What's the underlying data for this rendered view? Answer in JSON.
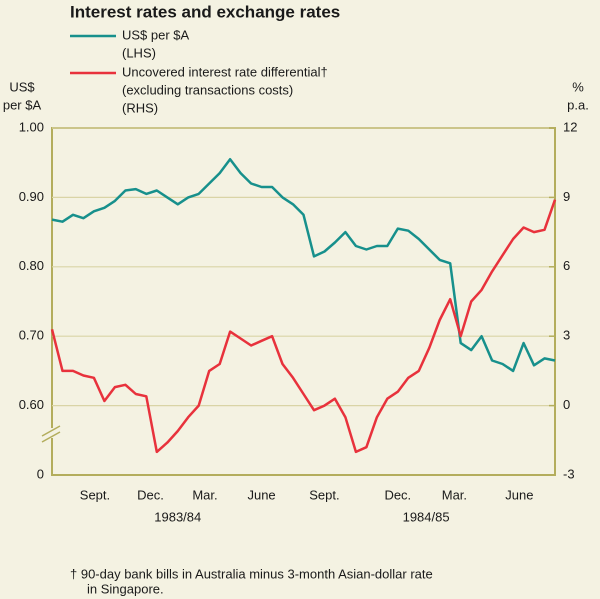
{
  "chart_data": {
    "type": "line",
    "title": "Interest rates and exchange rates",
    "y_label": [
      "US$",
      "per $A"
    ],
    "y2_label": [
      "%",
      "p.a."
    ],
    "y_break_label": "0",
    "x": [
      0,
      0.5,
      1,
      1.5,
      2,
      2.5,
      3,
      3.5,
      4,
      4.5,
      5,
      5.5,
      6,
      6.5,
      7,
      7.5,
      8,
      8.5,
      9,
      9.5,
      10,
      10.5,
      11,
      11.5,
      12,
      12.5,
      13,
      13.5,
      14,
      14.5,
      15,
      15.5,
      16,
      16.5,
      17,
      17.5,
      18,
      18.5,
      19,
      19.5,
      20,
      20.5,
      21,
      21.5,
      22,
      22.5,
      23,
      23.5,
      24
    ],
    "xlim": [
      0,
      24
    ],
    "xticks": [
      {
        "value": 2.05,
        "label": "Sept."
      },
      {
        "value": 4.7,
        "label": "Dec."
      },
      {
        "value": 7.3,
        "label": "Mar."
      },
      {
        "value": 10,
        "label": "June"
      },
      {
        "value": 13,
        "label": "Sept."
      },
      {
        "value": 16.5,
        "label": "Dec."
      },
      {
        "value": 19.2,
        "label": "Mar."
      },
      {
        "value": 22.3,
        "label": "June"
      }
    ],
    "x_groups": [
      "1983/84",
      "1984/85"
    ],
    "ylim": [
      0.5,
      1.0
    ],
    "yticks": [
      {
        "value": 0.6,
        "label": "0.60"
      },
      {
        "value": 0.7,
        "label": "0.70"
      },
      {
        "value": 0.8,
        "label": "0.80"
      },
      {
        "value": 0.9,
        "label": "0.90"
      },
      {
        "value": 1.0,
        "label": "1.00"
      }
    ],
    "y2lim": [
      -3,
      12
    ],
    "y2ticks": [
      -3,
      0,
      3,
      6,
      9,
      12
    ],
    "grid": true,
    "series": [
      {
        "name": "US$ per $A",
        "name_note": "(LHS)",
        "color": "#17908c",
        "values": [
          0.868,
          0.865,
          0.875,
          0.87,
          0.88,
          0.885,
          0.895,
          0.91,
          0.912,
          0.905,
          0.91,
          0.9,
          0.89,
          0.9,
          0.905,
          0.92,
          0.935,
          0.955,
          0.935,
          0.92,
          0.915,
          0.915,
          0.9,
          0.89,
          0.875,
          0.815,
          0.822,
          0.835,
          0.85,
          0.83,
          0.825,
          0.83,
          0.83,
          0.855,
          0.852,
          0.84,
          0.825,
          0.81,
          0.805,
          0.69,
          0.68,
          0.7,
          0.665,
          0.66,
          0.65,
          0.69,
          0.658,
          0.668,
          0.665
        ]
      },
      {
        "name": "Uncovered interest rate differential†",
        "name_note": [
          "(excluding transactions costs)",
          "(RHS)"
        ],
        "color": "#e8323c",
        "axis": "y2",
        "values": [
          3.3,
          1.5,
          1.5,
          1.3,
          1.2,
          0.2,
          0.8,
          0.9,
          0.5,
          0.4,
          -2.0,
          -1.6,
          -1.1,
          -0.5,
          0.0,
          1.5,
          1.8,
          3.2,
          2.9,
          2.6,
          2.8,
          3.0,
          1.8,
          1.2,
          0.5,
          -0.2,
          0.0,
          0.3,
          -0.5,
          -2.0,
          -1.8,
          -0.5,
          0.3,
          0.6,
          1.2,
          1.5,
          2.5,
          3.7,
          4.6,
          3.0,
          4.5,
          5.0,
          5.8,
          6.5,
          7.2,
          7.7,
          7.5,
          7.6,
          8.9
        ]
      }
    ],
    "footnote": [
      "†   90-day bank bills in Australia minus 3-month Asian-dollar rate",
      "in Singapore."
    ]
  }
}
